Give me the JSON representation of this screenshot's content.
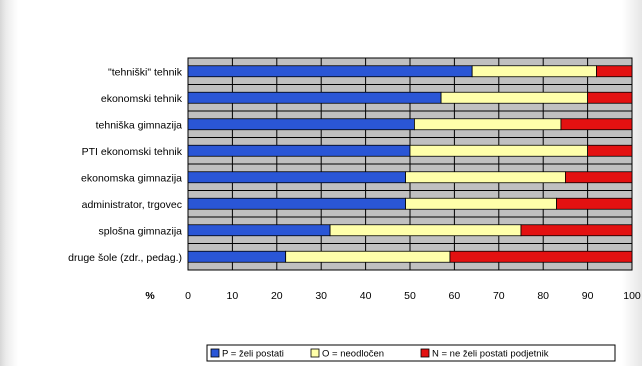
{
  "chart_data": {
    "type": "bar",
    "orientation": "horizontal",
    "stacked": true,
    "categories": [
      "\"tehniški\" tehnik",
      "ekonomski tehnik",
      "tehniška gimnazija",
      "PTI ekonomski tehnik",
      "ekonomska gimnazija",
      "administrator, trgovec",
      "splošna gimnazija",
      "druge šole (zdr., pedag.)"
    ],
    "series": [
      {
        "name": "P = želi postati",
        "color": "#2a56d6",
        "values": [
          64,
          57,
          51,
          50,
          49,
          49,
          32,
          22
        ]
      },
      {
        "name": "O = neodločen",
        "color": "#ffffaa",
        "values": [
          28,
          33,
          33,
          40,
          36,
          34,
          43,
          37
        ]
      },
      {
        "name": "N = ne želi postati podjetnik",
        "color": "#e31111",
        "values": [
          8,
          10,
          16,
          10,
          15,
          17,
          25,
          41
        ]
      }
    ],
    "xlim": [
      0,
      100
    ],
    "xticks": [
      0,
      10,
      20,
      30,
      40,
      50,
      60,
      70,
      80,
      90,
      100
    ],
    "xlabel": "%",
    "grid": true,
    "plot_background": "#c0c0c0",
    "legend_position": "bottom-center"
  }
}
